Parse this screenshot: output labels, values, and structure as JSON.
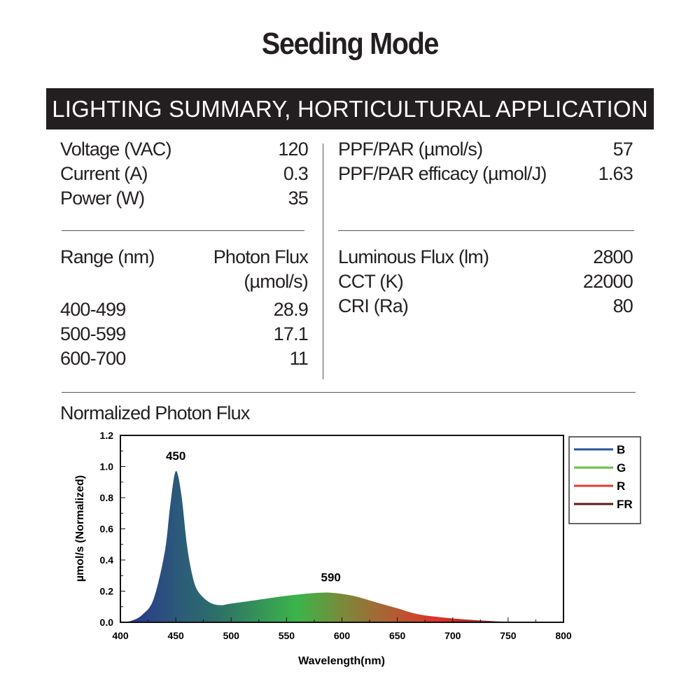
{
  "title": "Seeding Mode",
  "summary_header": "LIGHTING SUMMARY, HORTICULTURAL APPLICATION",
  "electrical": [
    {
      "label": "Voltage (VAC)",
      "value": "120"
    },
    {
      "label": "Current (A)",
      "value": "0.3"
    },
    {
      "label": "Power (W)",
      "value": "35"
    }
  ],
  "ppf": [
    {
      "label": "PPF/PAR (µmol/s)",
      "value": "57"
    },
    {
      "label": "PPF/PAR efficacy (µmol/J)",
      "value": "1.63"
    }
  ],
  "range_table": {
    "col1": "Range (nm)",
    "col2_line1": "Photon Flux",
    "col2_line2": "(µmol/s)",
    "rows": [
      {
        "range": "400-499",
        "flux": "28.9"
      },
      {
        "range": "500-599",
        "flux": "17.1"
      },
      {
        "range": "600-700",
        "flux": "11"
      }
    ]
  },
  "photometric": [
    {
      "label": "Luminous Flux (lm)",
      "value": "2800"
    },
    {
      "label": "CCT (K)",
      "value": "22000"
    },
    {
      "label": "CRI (Ra)",
      "value": "80"
    }
  ],
  "section_title": "Normalized Photon Flux",
  "chart_data": {
    "type": "area",
    "title": "Normalized Photon Flux",
    "xlabel": "Wavelength(nm)",
    "ylabel": "µmol/s (Normalized)",
    "xlim": [
      400,
      800
    ],
    "ylim": [
      0,
      1.2
    ],
    "xticks": [
      "400",
      "450",
      "500",
      "550",
      "600",
      "650",
      "700",
      "750",
      "800"
    ],
    "yticks": [
      "0.0",
      "0.2",
      "0.4",
      "0.6",
      "0.8",
      "1.0",
      "1.2"
    ],
    "x": [
      400,
      410,
      420,
      430,
      440,
      445,
      450,
      455,
      460,
      465,
      470,
      480,
      490,
      500,
      520,
      550,
      570,
      590,
      610,
      630,
      650,
      670,
      700,
      730,
      750,
      800
    ],
    "y": [
      0,
      0.01,
      0.05,
      0.15,
      0.45,
      0.75,
      0.97,
      0.82,
      0.5,
      0.3,
      0.2,
      0.13,
      0.11,
      0.12,
      0.14,
      0.17,
      0.185,
      0.19,
      0.17,
      0.13,
      0.09,
      0.05,
      0.025,
      0.01,
      0.004,
      0.002
    ],
    "annotations": [
      {
        "x": 450,
        "label": "450"
      },
      {
        "x": 590,
        "label": "590"
      }
    ],
    "legend": [
      {
        "name": "B",
        "color": "#2a5599"
      },
      {
        "name": "G",
        "color": "#6abf45"
      },
      {
        "name": "R",
        "color": "#e03b33"
      },
      {
        "name": "FR",
        "color": "#5a1a14"
      }
    ],
    "legend_position": "right"
  }
}
